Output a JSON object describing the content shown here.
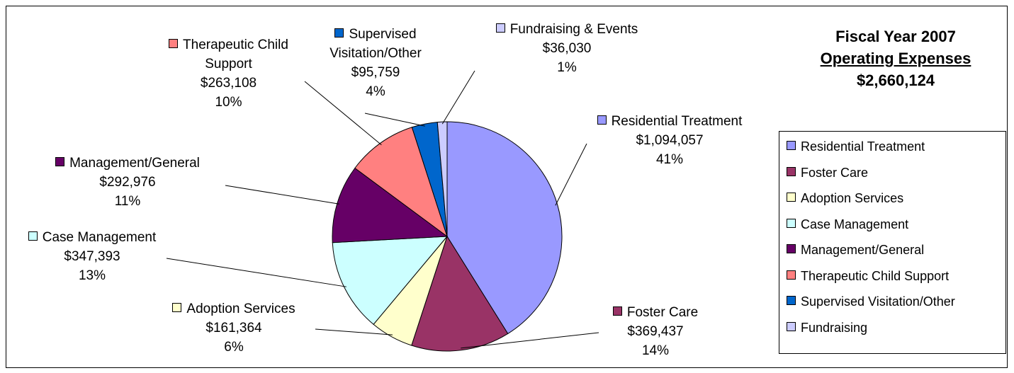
{
  "chart_data": {
    "type": "pie",
    "title": "Fiscal Year 2007",
    "subtitle": "Operating Expenses",
    "total": 2660124,
    "total_label": "$2,660,124",
    "categories": [
      "Residential Treatment",
      "Foster Care",
      "Adoption Services",
      "Case Management",
      "Management/General",
      "Therapeutic Child Support",
      "Supervised Visitation/Other",
      "Fundraising"
    ],
    "slice_labels": [
      "Residential Treatment",
      "Foster Care",
      "Adoption Services",
      "Case Management",
      "Management/General",
      "Therapeutic Child Support",
      "Supervised Visitation/Other",
      "Fundraising & Events"
    ],
    "values": [
      1094057,
      369437,
      161364,
      347393,
      292976,
      263108,
      95759,
      36030
    ],
    "value_labels": [
      "$1,094,057",
      "$369,437",
      "$161,364",
      "$347,393",
      "$292,976",
      "$263,108",
      "$95,759",
      "$36,030"
    ],
    "percents": [
      41,
      14,
      6,
      13,
      11,
      10,
      4,
      1
    ],
    "percent_labels": [
      "41%",
      "14%",
      "6%",
      "13%",
      "11%",
      "10%",
      "4%",
      "1%"
    ],
    "colors": [
      "#9999ff",
      "#993366",
      "#ffffcc",
      "#ccffff",
      "#660066",
      "#ff8080",
      "#0066cc",
      "#ccccff"
    ],
    "legend": "right"
  }
}
